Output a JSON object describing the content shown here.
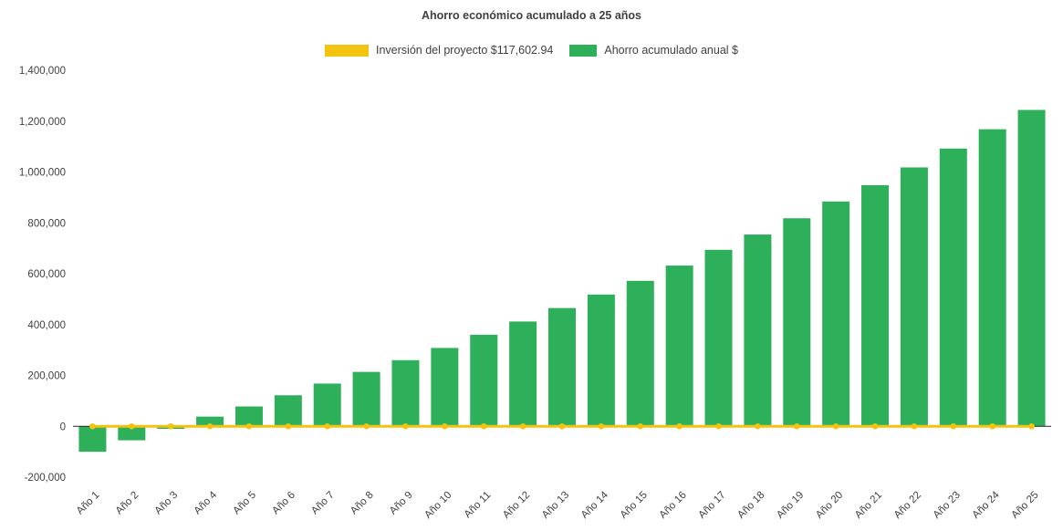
{
  "colors": {
    "bar": "#2eb05a",
    "line": "#f2c311",
    "text": "#404040",
    "axis": "#262626",
    "background": "#ffffff"
  },
  "chart_data": {
    "type": "bar",
    "title": "Ahorro económico acumulado a 25 años",
    "xlabel": "",
    "ylabel": "",
    "categories": [
      "Año 1",
      "Año 2",
      "Año 3",
      "Año 4",
      "Año 5",
      "Año 6",
      "Año 7",
      "Año 8",
      "Año 9",
      "Año 10",
      "Año 11",
      "Año 12",
      "Año 13",
      "Año 14",
      "Año 15",
      "Año 16",
      "Año 17",
      "Año 18",
      "Año 19",
      "Año 20",
      "Año 21",
      "Año 22",
      "Año 23",
      "Año 24",
      "Año 25"
    ],
    "series": [
      {
        "name": "Inversión del proyecto $117,602.94",
        "type": "line",
        "color": "#f2c311",
        "values": [
          0,
          0,
          0,
          0,
          0,
          0,
          0,
          0,
          0,
          0,
          0,
          0,
          0,
          0,
          0,
          0,
          0,
          0,
          0,
          0,
          0,
          0,
          0,
          0,
          0
        ]
      },
      {
        "name": "Ahorro acumulado anual $",
        "type": "bar",
        "color": "#2eb05a",
        "values": [
          -100000,
          -55000,
          -10000,
          38000,
          78000,
          122000,
          168000,
          214000,
          260000,
          308000,
          360000,
          412000,
          465000,
          518000,
          572000,
          632000,
          694000,
          754000,
          818000,
          884000,
          948000,
          1018000,
          1092000,
          1168000,
          1244000
        ]
      }
    ],
    "ylim": [
      -200000,
      1400000
    ],
    "ytick_step": 200000,
    "ytick_labels": [
      "1,400,000",
      "1,200,000",
      "1,000,000",
      "800,000",
      "600,000",
      "400,000",
      "200,000",
      "0",
      "-200,000"
    ],
    "grid": false,
    "legend_position": "top"
  }
}
